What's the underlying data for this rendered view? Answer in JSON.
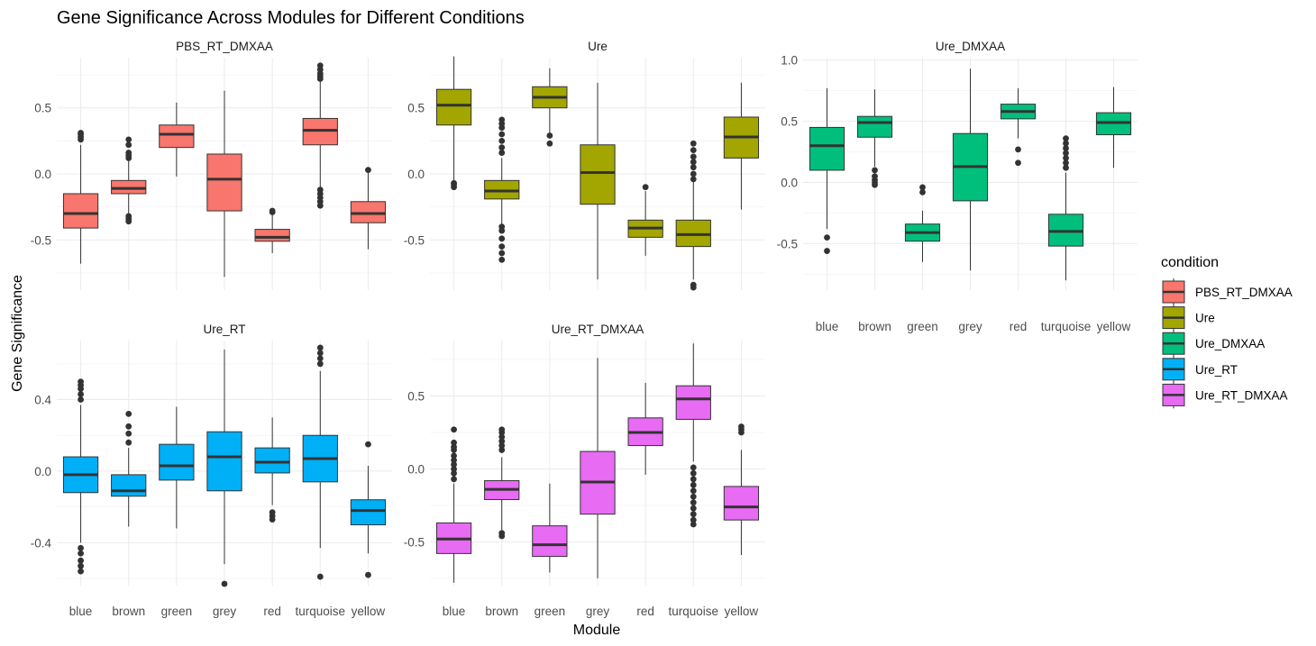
{
  "chart_data": {
    "type": "boxplot",
    "title": "Gene Significance Across Modules for Different Conditions",
    "xlabel": "Module",
    "ylabel": "Gene Significance",
    "categories": [
      "blue",
      "brown",
      "green",
      "grey",
      "red",
      "turquoise",
      "yellow"
    ],
    "legend": {
      "title": "condition",
      "position": "right"
    },
    "grid": true,
    "panels": [
      {
        "name": "PBS_RT_DMXAA",
        "color": "#F8766D",
        "yticks": [
          -0.5,
          0.0,
          0.5
        ],
        "ytick_labels": [
          "-0.5",
          "0.0",
          "0.5"
        ],
        "ylim": [
          -0.88,
          0.88
        ],
        "boxes": [
          {
            "module": "blue",
            "min": -0.68,
            "q1": -0.41,
            "median": -0.3,
            "q3": -0.15,
            "max": 0.22,
            "outliers": [
              0.26,
              0.28,
              0.3,
              0.31
            ]
          },
          {
            "module": "brown",
            "min": -0.3,
            "q1": -0.15,
            "median": -0.11,
            "q3": -0.05,
            "max": 0.1,
            "outliers": [
              0.12,
              0.14,
              0.16,
              0.22,
              0.26,
              -0.32,
              -0.34,
              -0.36
            ]
          },
          {
            "module": "green",
            "min": -0.02,
            "q1": 0.2,
            "median": 0.3,
            "q3": 0.37,
            "max": 0.54,
            "outliers": []
          },
          {
            "module": "grey",
            "min": -0.78,
            "q1": -0.28,
            "median": -0.04,
            "q3": 0.15,
            "max": 0.63,
            "outliers": []
          },
          {
            "module": "red",
            "min": -0.6,
            "q1": -0.51,
            "median": -0.48,
            "q3": -0.42,
            "max": -0.3,
            "outliers": [
              -0.28,
              -0.29
            ]
          },
          {
            "module": "turquoise",
            "min": -0.1,
            "q1": 0.22,
            "median": 0.33,
            "q3": 0.42,
            "max": 0.7,
            "outliers": [
              0.72,
              0.74,
              0.76,
              0.79,
              0.82,
              -0.12,
              -0.15,
              -0.18,
              -0.21,
              -0.24
            ]
          },
          {
            "module": "yellow",
            "min": -0.57,
            "q1": -0.37,
            "median": -0.3,
            "q3": -0.21,
            "max": 0.01,
            "outliers": [
              0.03
            ]
          }
        ]
      },
      {
        "name": "Ure",
        "color": "#A3A500",
        "yticks": [
          -0.5,
          0.0,
          0.5
        ],
        "ytick_labels": [
          "-0.5",
          "0.0",
          "0.5"
        ],
        "ylim": [
          -0.88,
          0.88
        ],
        "boxes": [
          {
            "module": "blue",
            "min": -0.06,
            "q1": 0.37,
            "median": 0.52,
            "q3": 0.64,
            "max": 0.89,
            "outliers": [
              -0.07,
              -0.08,
              -0.1
            ]
          },
          {
            "module": "brown",
            "min": -0.38,
            "q1": -0.19,
            "median": -0.13,
            "q3": -0.05,
            "max": 0.12,
            "outliers": [
              0.16,
              0.2,
              0.25,
              0.3,
              0.35,
              0.38,
              0.41,
              -0.4,
              -0.43,
              -0.49,
              -0.55,
              -0.6,
              -0.65
            ]
          },
          {
            "module": "green",
            "min": 0.31,
            "q1": 0.5,
            "median": 0.58,
            "q3": 0.66,
            "max": 0.8,
            "outliers": [
              0.29,
              0.23
            ]
          },
          {
            "module": "grey",
            "min": -0.8,
            "q1": -0.23,
            "median": 0.01,
            "q3": 0.22,
            "max": 0.69,
            "outliers": []
          },
          {
            "module": "red",
            "min": -0.62,
            "q1": -0.48,
            "median": -0.41,
            "q3": -0.35,
            "max": -0.13,
            "outliers": [
              -0.1
            ]
          },
          {
            "module": "turquoise",
            "min": -0.8,
            "q1": -0.55,
            "median": -0.46,
            "q3": -0.35,
            "max": -0.06,
            "outliers": [
              -0.04,
              0.0,
              0.05,
              0.09,
              0.13,
              0.18,
              0.23,
              -0.84,
              -0.86
            ]
          },
          {
            "module": "yellow",
            "min": -0.27,
            "q1": 0.12,
            "median": 0.28,
            "q3": 0.43,
            "max": 0.69,
            "outliers": []
          }
        ]
      },
      {
        "name": "Ure_DMXAA",
        "color": "#00BF7D",
        "yticks": [
          -0.5,
          0.0,
          0.5,
          1.0
        ],
        "ytick_labels": [
          "-0.5",
          "0.0",
          "0.5",
          "1.0"
        ],
        "ylim": [
          -0.88,
          1.02
        ],
        "boxes": [
          {
            "module": "blue",
            "min": -0.38,
            "q1": 0.1,
            "median": 0.3,
            "q3": 0.45,
            "max": 0.77,
            "outliers": [
              -0.45,
              -0.56
            ]
          },
          {
            "module": "brown",
            "min": 0.13,
            "q1": 0.37,
            "median": 0.49,
            "q3": 0.54,
            "max": 0.76,
            "outliers": [
              0.1,
              0.05,
              0.02,
              0.0,
              -0.02
            ]
          },
          {
            "module": "green",
            "min": -0.65,
            "q1": -0.48,
            "median": -0.41,
            "q3": -0.34,
            "max": -0.23,
            "outliers": [
              -0.04,
              -0.08
            ]
          },
          {
            "module": "grey",
            "min": -0.72,
            "q1": -0.15,
            "median": 0.13,
            "q3": 0.4,
            "max": 0.93,
            "outliers": []
          },
          {
            "module": "red",
            "min": 0.36,
            "q1": 0.52,
            "median": 0.58,
            "q3": 0.64,
            "max": 0.77,
            "outliers": [
              0.27,
              0.16
            ]
          },
          {
            "module": "turquoise",
            "min": -0.8,
            "q1": -0.52,
            "median": -0.4,
            "q3": -0.26,
            "max": 0.08,
            "outliers": [
              0.12,
              0.16,
              0.2,
              0.24,
              0.28,
              0.32,
              0.36
            ]
          },
          {
            "module": "yellow",
            "min": 0.12,
            "q1": 0.39,
            "median": 0.49,
            "q3": 0.57,
            "max": 0.78,
            "outliers": []
          }
        ]
      },
      {
        "name": "Ure_RT",
        "color": "#00B0F6",
        "yticks": [
          -0.4,
          0.0,
          0.4
        ],
        "ytick_labels": [
          "-0.4",
          "0.0",
          "0.4"
        ],
        "ylim": [
          -0.64,
          0.73
        ],
        "boxes": [
          {
            "module": "blue",
            "min": -0.4,
            "q1": -0.12,
            "median": -0.02,
            "q3": 0.08,
            "max": 0.37,
            "outliers": [
              0.4,
              0.43,
              0.46,
              0.48,
              0.5,
              -0.43,
              -0.46,
              -0.5,
              -0.53,
              -0.56
            ]
          },
          {
            "module": "brown",
            "min": -0.31,
            "q1": -0.14,
            "median": -0.11,
            "q3": -0.02,
            "max": 0.13,
            "outliers": [
              0.16,
              0.21,
              0.25,
              0.32
            ]
          },
          {
            "module": "green",
            "min": -0.32,
            "q1": -0.05,
            "median": 0.03,
            "q3": 0.15,
            "max": 0.36,
            "outliers": []
          },
          {
            "module": "grey",
            "min": -0.52,
            "q1": -0.11,
            "median": 0.08,
            "q3": 0.22,
            "max": 0.68,
            "outliers": [
              -0.63
            ]
          },
          {
            "module": "red",
            "min": -0.19,
            "q1": -0.01,
            "median": 0.05,
            "q3": 0.13,
            "max": 0.3,
            "outliers": [
              -0.23,
              -0.25,
              -0.27
            ]
          },
          {
            "module": "turquoise",
            "min": -0.43,
            "q1": -0.06,
            "median": 0.07,
            "q3": 0.2,
            "max": 0.56,
            "outliers": [
              0.6,
              0.63,
              0.66,
              0.69,
              -0.59
            ]
          },
          {
            "module": "yellow",
            "min": -0.46,
            "q1": -0.3,
            "median": -0.22,
            "q3": -0.16,
            "max": 0.03,
            "outliers": [
              0.15,
              -0.58
            ]
          }
        ]
      },
      {
        "name": "Ure_RT_DMXAA",
        "color": "#E76BF3",
        "yticks": [
          -0.5,
          0.0,
          0.5
        ],
        "ytick_labels": [
          "-0.5",
          "0.0",
          "0.5"
        ],
        "ylim": [
          -0.8,
          0.88
        ],
        "boxes": [
          {
            "module": "blue",
            "min": -0.78,
            "q1": -0.58,
            "median": -0.48,
            "q3": -0.37,
            "max": -0.1,
            "outliers": [
              -0.07,
              -0.03,
              0.0,
              0.03,
              0.06,
              0.09,
              0.13,
              0.15,
              0.18,
              0.27
            ]
          },
          {
            "module": "brown",
            "min": -0.42,
            "q1": -0.21,
            "median": -0.14,
            "q3": -0.08,
            "max": 0.08,
            "outliers": [
              0.13,
              0.16,
              0.19,
              0.22,
              0.25,
              0.27,
              -0.44,
              -0.46
            ]
          },
          {
            "module": "green",
            "min": -0.71,
            "q1": -0.6,
            "median": -0.52,
            "q3": -0.39,
            "max": -0.1,
            "outliers": []
          },
          {
            "module": "grey",
            "min": -0.75,
            "q1": -0.31,
            "median": -0.09,
            "q3": 0.12,
            "max": 0.76,
            "outliers": []
          },
          {
            "module": "red",
            "min": -0.04,
            "q1": 0.16,
            "median": 0.25,
            "q3": 0.35,
            "max": 0.59,
            "outliers": []
          },
          {
            "module": "turquoise",
            "min": 0.05,
            "q1": 0.34,
            "median": 0.48,
            "q3": 0.57,
            "max": 0.86,
            "outliers": [
              0.01,
              -0.03,
              -0.07,
              -0.11,
              -0.15,
              -0.19,
              -0.23,
              -0.27,
              -0.31,
              -0.35,
              -0.38
            ]
          },
          {
            "module": "yellow",
            "min": -0.59,
            "q1": -0.35,
            "median": -0.26,
            "q3": -0.12,
            "max": 0.13,
            "outliers": [
              0.25,
              0.27,
              0.29
            ]
          }
        ]
      }
    ]
  }
}
